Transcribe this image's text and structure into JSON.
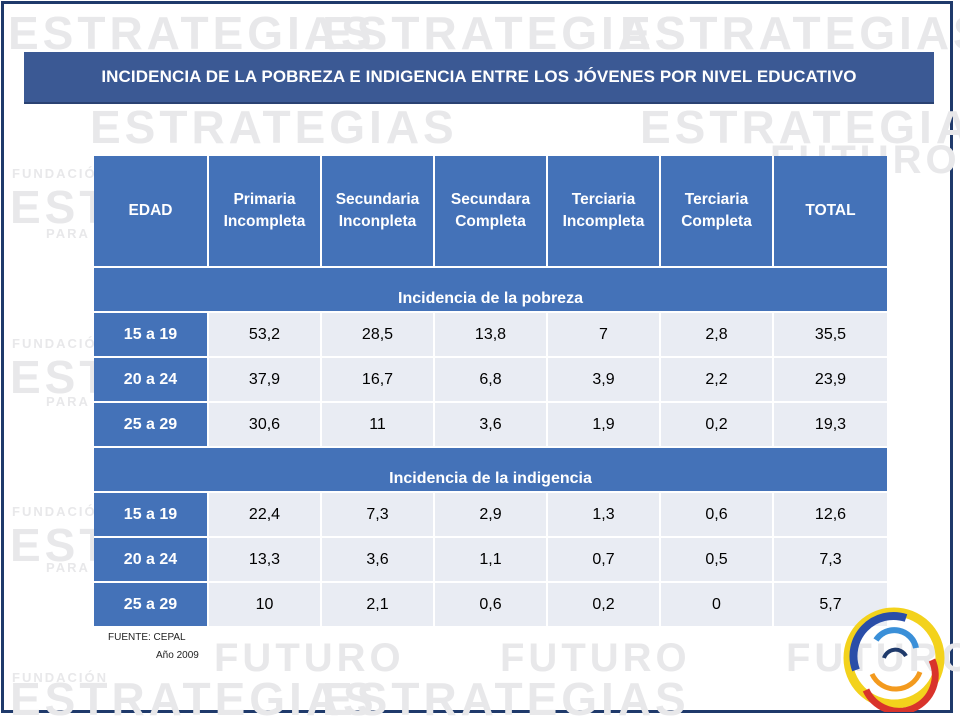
{
  "slide": {
    "title": "INCIDENCIA DE LA POBREZA E INDIGENCIA ENTRE LOS JÓVENES POR NIVEL EDUCATIVO"
  },
  "background_watermark": {
    "word_strategies": "ESTRATEGIAS",
    "word_future": "FUTURO",
    "word_foundation": "FUNDACIÓN",
    "word_for_the": "PARA EL"
  },
  "table": {
    "headers": [
      "EDAD",
      "Primaria Incompleta",
      "Secundaria Inconpleta",
      "Secundara Completa",
      "Terciaria Incompleta",
      "Terciaria Completa",
      "TOTAL"
    ],
    "sections": [
      {
        "title": "Incidencia de la pobreza",
        "rows": [
          {
            "age": "15 a 19",
            "values": [
              "53,2",
              "28,5",
              "13,8",
              "7",
              "2,8",
              "35,5"
            ]
          },
          {
            "age": "20 a 24",
            "values": [
              "37,9",
              "16,7",
              "6,8",
              "3,9",
              "2,2",
              "23,9"
            ]
          },
          {
            "age": "25 a 29",
            "values": [
              "30,6",
              "11",
              "3,6",
              "1,9",
              "0,2",
              "19,3"
            ]
          }
        ]
      },
      {
        "title": "Incidencia de la indigencia",
        "rows": [
          {
            "age": "15 a 19",
            "values": [
              "22,4",
              "7,3",
              "2,9",
              "1,3",
              "0,6",
              "12,6"
            ]
          },
          {
            "age": "20 a 24",
            "values": [
              "13,3",
              "3,6",
              "1,1",
              "0,7",
              "0,5",
              "7,3"
            ]
          },
          {
            "age": "25 a 29",
            "values": [
              "10",
              "2,1",
              "0,6",
              "0,2",
              "0",
              "5,7"
            ]
          }
        ]
      }
    ]
  },
  "source": {
    "label": "FUENTE:  CEPAL",
    "year": "Año 2009"
  },
  "colors": {
    "title_bar": "#3b5994",
    "header": "#4472b8",
    "cell": "#e9ecf3",
    "frame": "#1f3a6b"
  }
}
